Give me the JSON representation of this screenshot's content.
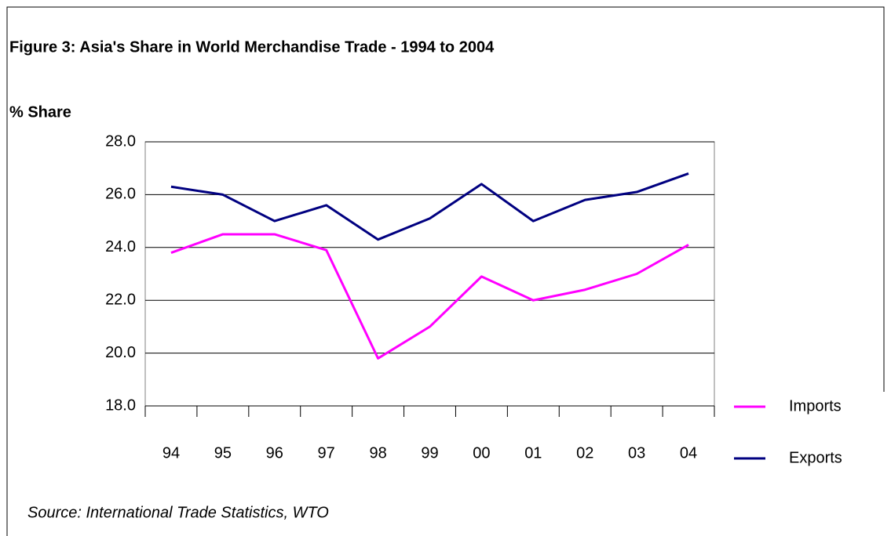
{
  "chart_data": {
    "type": "line",
    "title": "Figure 3: Asia's Share in World Merchandise Trade - 1994 to 2004",
    "y_label": "% Share",
    "source": "Source: International Trade Statistics, WTO",
    "categories": [
      "94",
      "95",
      "96",
      "97",
      "98",
      "99",
      "00",
      "01",
      "02",
      "03",
      "04"
    ],
    "series": [
      {
        "name": "Imports",
        "color": "#ff00ff",
        "values": [
          23.8,
          24.5,
          24.5,
          23.9,
          19.8,
          21.0,
          22.9,
          22.0,
          22.4,
          23.0,
          24.1
        ]
      },
      {
        "name": "Exports",
        "color": "#000080",
        "values": [
          26.3,
          26.0,
          25.0,
          25.6,
          24.3,
          25.1,
          26.4,
          25.0,
          25.8,
          26.1,
          26.8
        ]
      }
    ],
    "ylim": [
      18,
      28
    ],
    "yticks": [
      {
        "value": 18,
        "label": "18.0"
      },
      {
        "value": 20,
        "label": "20.0"
      },
      {
        "value": 22,
        "label": "22.0"
      },
      {
        "value": 24,
        "label": "24.0"
      },
      {
        "value": 26,
        "label": "26.0"
      },
      {
        "value": 28,
        "label": "28.0"
      }
    ],
    "grid": true,
    "legend": "right"
  }
}
